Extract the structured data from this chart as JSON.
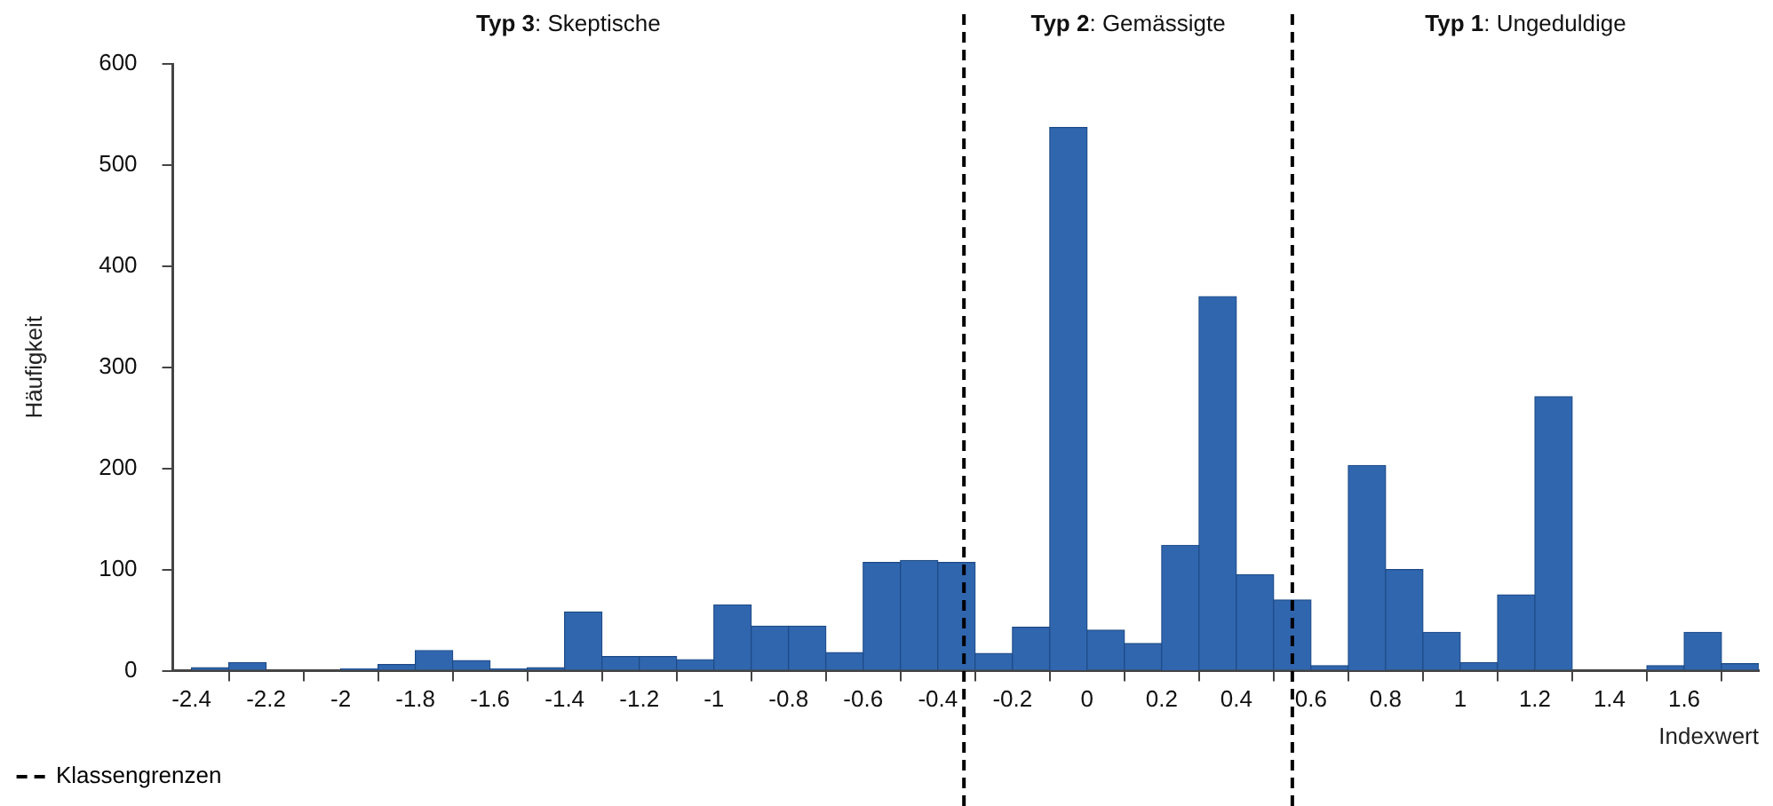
{
  "chart_data": {
    "type": "histogram",
    "xlabel": "Indexwert",
    "ylabel": "Häufigkeit",
    "annotations": [
      "Typ 3: Skeptische",
      "Typ 2: Gemässigte",
      "Typ 1: Ungeduldige"
    ],
    "bins": [
      -2.4,
      -2.3,
      -2.2,
      -2.1,
      -2.0,
      -1.9,
      -1.8,
      -1.7,
      -1.6,
      -1.5,
      -1.4,
      -1.3,
      -1.2,
      -1.1,
      -1.0,
      -0.9,
      -0.8,
      -0.7,
      -0.6,
      -0.5,
      -0.4,
      -0.3,
      -0.2,
      -0.1,
      0,
      0.1,
      0.2,
      0.3,
      0.4,
      0.5,
      0.6,
      0.7,
      0.8,
      0.9,
      1.0,
      1.1,
      1.2,
      1.3,
      1.4,
      1.5,
      1.6,
      1.7,
      1.8
    ],
    "values": [
      3,
      8,
      0,
      0,
      2,
      6,
      20,
      10,
      2,
      3,
      58,
      14,
      14,
      11,
      65,
      44,
      44,
      18,
      107,
      109,
      107,
      17,
      43,
      537,
      40,
      27,
      124,
      370,
      95,
      70,
      5,
      203,
      100,
      38,
      8,
      75,
      271,
      0,
      0,
      5,
      38,
      7
    ],
    "color": "#3066ae",
    "xlim": [
      -2.45,
      1.8
    ],
    "xticks": [
      -2.4,
      -2.2,
      -2,
      -1.8,
      -1.6,
      -1.4,
      -1.2,
      -1,
      -0.8,
      -0.6,
      -0.4,
      -0.2,
      0,
      0.2,
      0.4,
      0.6,
      0.8,
      1,
      1.2,
      1.4,
      1.6
    ],
    "ylim": [
      0,
      600
    ],
    "yticks": [
      0,
      100,
      200,
      300,
      400,
      500,
      600
    ],
    "grid": false,
    "legend": "bottom left",
    "ref_lines": [
      {
        "axis": "x",
        "value": -0.33,
        "label": "Klassengrenzen",
        "line_style": "dashed",
        "color": "#000000"
      },
      {
        "axis": "x",
        "value": 0.55,
        "line_style": "dashed",
        "color": "#000000"
      }
    ]
  }
}
